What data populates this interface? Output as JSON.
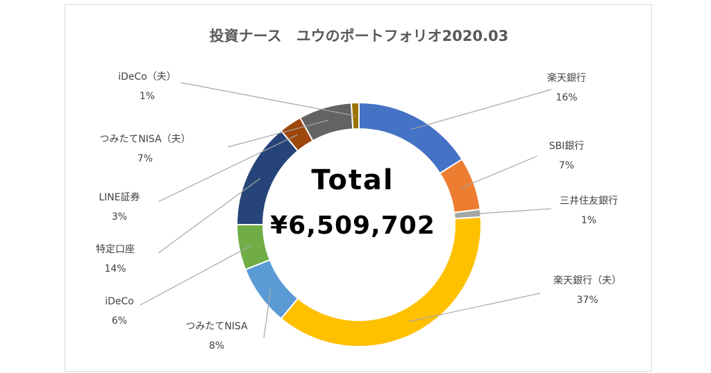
{
  "chart_data": {
    "type": "pie",
    "variant": "donut",
    "title": "投資ナース　ユウのポートフォリオ2020.03",
    "center_label": "Total",
    "center_value": "¥6,509,702",
    "slices": [
      {
        "name": "楽天銀行",
        "value": 16,
        "label": "16%",
        "color": "#4472C4"
      },
      {
        "name": "SBI銀行",
        "value": 7,
        "label": "7%",
        "color": "#ED7D31"
      },
      {
        "name": "三井住友銀行",
        "value": 1,
        "label": "1%",
        "color": "#A5A5A5"
      },
      {
        "name": "楽天銀行（夫）",
        "value": 37,
        "label": "37%",
        "color": "#FFC000"
      },
      {
        "name": "つみたてNISA",
        "value": 8,
        "label": "8%",
        "color": "#5B9BD5"
      },
      {
        "name": "iDeCo",
        "value": 6,
        "label": "6%",
        "color": "#70AD47"
      },
      {
        "name": "特定口座",
        "value": 14,
        "label": "14%",
        "color": "#264478"
      },
      {
        "name": "LINE証券",
        "value": 3,
        "label": "3%",
        "color": "#9E480E"
      },
      {
        "name": "つみたてNISA（夫）",
        "value": 7,
        "label": "7%",
        "color": "#636363"
      },
      {
        "name": "iDeCo（夫）",
        "value": 1,
        "label": "1%",
        "color": "#997300"
      }
    ],
    "legend": "none"
  }
}
